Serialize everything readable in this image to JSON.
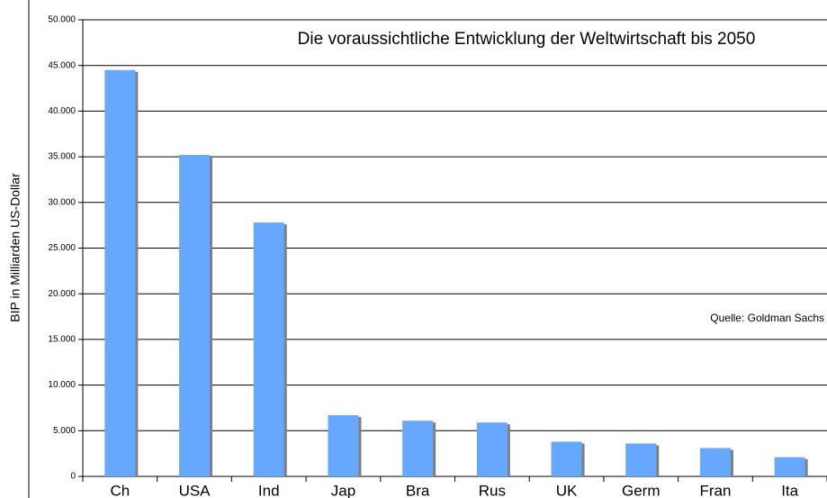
{
  "chart_data": {
    "type": "bar",
    "title": "Die voraussichtliche Entwicklung der Weltwirtschaft bis 2050",
    "annotation": "Quelle: Goldman Sachs",
    "y_label": "BIP in Milliarden US-Dollar",
    "categories": [
      "Ch",
      "USA",
      "Ind",
      "Jap",
      "Bra",
      "Rus",
      "UK",
      "Germ",
      "Fran",
      "Ita"
    ],
    "values": [
      44500,
      35200,
      27800,
      6700,
      6100,
      5900,
      3800,
      3600,
      3100,
      2100
    ],
    "color": "#66a8ff",
    "ylim": [
      0,
      50000
    ],
    "yticks": [
      0,
      {
        "value": 5000,
        "label": "5.000"
      },
      {
        "value": 10000,
        "label": "10.000"
      },
      {
        "value": 15000,
        "label": "15.000"
      },
      {
        "value": 20000,
        "label": "20.000"
      },
      {
        "value": 25000,
        "label": "25.000"
      },
      {
        "value": 30000,
        "label": "30.000"
      },
      {
        "value": 35000,
        "label": "35.000"
      },
      {
        "value": 40000,
        "label": "40.000"
      },
      {
        "value": 45000,
        "label": "45.000"
      },
      {
        "value": 50000,
        "label": "50.000"
      }
    ],
    "grid": true
  }
}
